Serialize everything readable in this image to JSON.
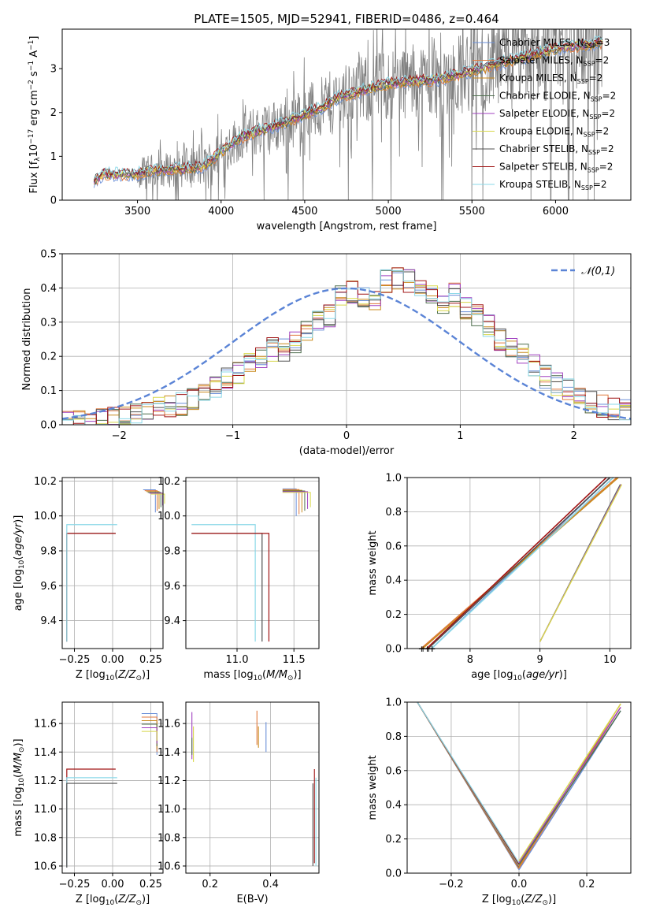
{
  "figure": {
    "title": "PLATE=1505, MJD=52941, FIBERID=0486, z=0.464"
  },
  "colors": {
    "Chabrier MILES": "#6a8fd8",
    "Salpeter MILES": "#e07a3e",
    "Kroupa MILES": "#c98a1e",
    "Chabrier ELODIE": "#4f6f4f",
    "Salpeter ELODIE": "#a040c0",
    "Kroupa ELODIE": "#d8d84a",
    "Chabrier STELIB": "#505050",
    "Salpeter STELIB": "#a01414",
    "Kroupa STELIB": "#8ad8e8",
    "data": "#808080",
    "grid": "#b0b0b0",
    "gauss": "#5b84d6"
  },
  "chart_data": [
    {
      "id": "spectrum",
      "type": "line",
      "title": "PLATE=1505, MJD=52941, FIBERID=0486, z=0.464",
      "xlabel": "wavelength [Angstrom, rest frame]",
      "ylabel": "Flux [f_λ 10^-17 erg cm^-2 s^-1 A^-1]",
      "xlim": [
        3050,
        6450
      ],
      "ylim": [
        0,
        3.9
      ],
      "xticks": [
        3500,
        4000,
        4500,
        5000,
        5500,
        6000
      ],
      "yticks": [
        0,
        1,
        2,
        3
      ],
      "grid": false,
      "legend_position": "right",
      "legend": [
        "Chabrier MILES, N_SSP=3",
        "Salpeter MILES, N_SSP=2",
        "Kroupa MILES, N_SSP=2",
        "Chabrier ELODIE, N_SSP=2",
        "Salpeter ELODIE, N_SSP=2",
        "Kroupa ELODIE, N_SSP=2",
        "Chabrier STELIB, N_SSP=2",
        "Salpeter STELIB, N_SSP=2",
        "Kroupa STELIB, N_SSP=2"
      ],
      "model_continuum": {
        "x": [
          3240,
          3300,
          3400,
          3500,
          3600,
          3700,
          3800,
          3900,
          4000,
          4100,
          4200,
          4300,
          4400,
          4500,
          4600,
          4700,
          4800,
          4900,
          5000,
          5100,
          5200,
          5300,
          5400,
          5500,
          5600,
          5700,
          5800,
          5900,
          6000,
          6100,
          6200,
          6280
        ],
        "y": [
          0.45,
          0.6,
          0.58,
          0.6,
          0.68,
          0.7,
          0.72,
          0.78,
          1.1,
          1.4,
          1.55,
          1.65,
          1.8,
          1.95,
          2.1,
          2.35,
          2.45,
          2.55,
          2.65,
          2.7,
          2.72,
          2.75,
          2.85,
          2.95,
          3.05,
          3.15,
          3.25,
          3.35,
          3.45,
          3.5,
          3.55,
          3.6
        ]
      }
    },
    {
      "id": "residuals",
      "type": "line",
      "xlabel": "(data-model)/error",
      "ylabel": "Normed distribution",
      "xlim": [
        -2.5,
        2.5
      ],
      "ylim": [
        0,
        0.5
      ],
      "xticks": [
        -2,
        -1,
        0,
        1,
        2
      ],
      "yticks": [
        0.0,
        0.1,
        0.2,
        0.3,
        0.4,
        0.5
      ],
      "grid": true,
      "legend_position": "top-right",
      "legend": [
        "𝒩(0,1)"
      ],
      "histogram": {
        "bin_edges_start": -2.5,
        "bin_width": 0.1,
        "values": [
          0.005,
          0.008,
          0.01,
          0.014,
          0.018,
          0.024,
          0.032,
          0.04,
          0.048,
          0.05,
          0.06,
          0.075,
          0.095,
          0.11,
          0.14,
          0.15,
          0.185,
          0.2,
          0.22,
          0.22,
          0.245,
          0.28,
          0.3,
          0.32,
          0.375,
          0.39,
          0.37,
          0.37,
          0.42,
          0.43,
          0.42,
          0.4,
          0.38,
          0.36,
          0.38,
          0.34,
          0.32,
          0.29,
          0.25,
          0.22,
          0.205,
          0.17,
          0.14,
          0.12,
          0.1,
          0.08,
          0.065,
          0.055,
          0.045,
          0.04
        ]
      }
    },
    {
      "id": "age-vs-Z",
      "type": "scatter",
      "xlabel": "Z [log10(Z/Z⊙)]",
      "ylabel": "age  [log10(age/yr)]",
      "xlim": [
        -0.33,
        0.33
      ],
      "ylim": [
        9.24,
        10.22
      ],
      "xticks": [
        -0.25,
        0.0,
        0.25
      ],
      "yticks": [
        9.4,
        9.6,
        9.8,
        10.0,
        10.2
      ],
      "grid": true
    },
    {
      "id": "age-vs-mass",
      "type": "scatter",
      "xlabel": "mass [log10(M/M⊙)]",
      "ylabel": "",
      "xlim": [
        10.55,
        11.72
      ],
      "ylim": [
        9.24,
        10.22
      ],
      "xticks": [
        11.0,
        11.5
      ],
      "yticks": [
        9.4,
        9.6,
        9.8,
        10.0,
        10.2
      ],
      "grid": true
    },
    {
      "id": "weight-vs-age",
      "type": "line",
      "xlabel": "age  [log10(age/yr)]",
      "ylabel": "mass weight",
      "xlim": [
        7.1,
        10.3
      ],
      "ylim": [
        0,
        1.0
      ],
      "xticks": [
        8,
        9,
        10
      ],
      "yticks": [
        0.0,
        0.2,
        0.4,
        0.6,
        0.8,
        1.0
      ],
      "grid": true
    },
    {
      "id": "mass-vs-Z",
      "type": "scatter",
      "xlabel": "Z [log10(Z/Z⊙)]",
      "ylabel": "mass [log10(M/M⊙)]",
      "xlim": [
        -0.33,
        0.33
      ],
      "ylim": [
        10.55,
        11.75
      ],
      "xticks": [
        -0.25,
        0.0,
        0.25
      ],
      "yticks": [
        10.6,
        10.8,
        11.0,
        11.2,
        11.4,
        11.6
      ],
      "grid": true
    },
    {
      "id": "mass-vs-ebv",
      "type": "scatter",
      "xlabel": "E(B-V)",
      "ylabel": "",
      "xlim": [
        0.12,
        0.56
      ],
      "ylim": [
        10.55,
        11.75
      ],
      "xticks": [
        0.2,
        0.4
      ],
      "yticks": [
        10.6,
        10.8,
        11.0,
        11.2,
        11.4,
        11.6
      ],
      "grid": true
    },
    {
      "id": "weight-vs-Z",
      "type": "line",
      "xlabel": "Z [log10(Z/Z⊙)]",
      "ylabel": "mass weight",
      "xlim": [
        -0.33,
        0.33
      ],
      "ylim": [
        0,
        1.0
      ],
      "xticks": [
        -0.2,
        0.0,
        0.2
      ],
      "yticks": [
        0.0,
        0.2,
        0.4,
        0.6,
        0.8,
        1.0
      ],
      "grid": true
    }
  ]
}
